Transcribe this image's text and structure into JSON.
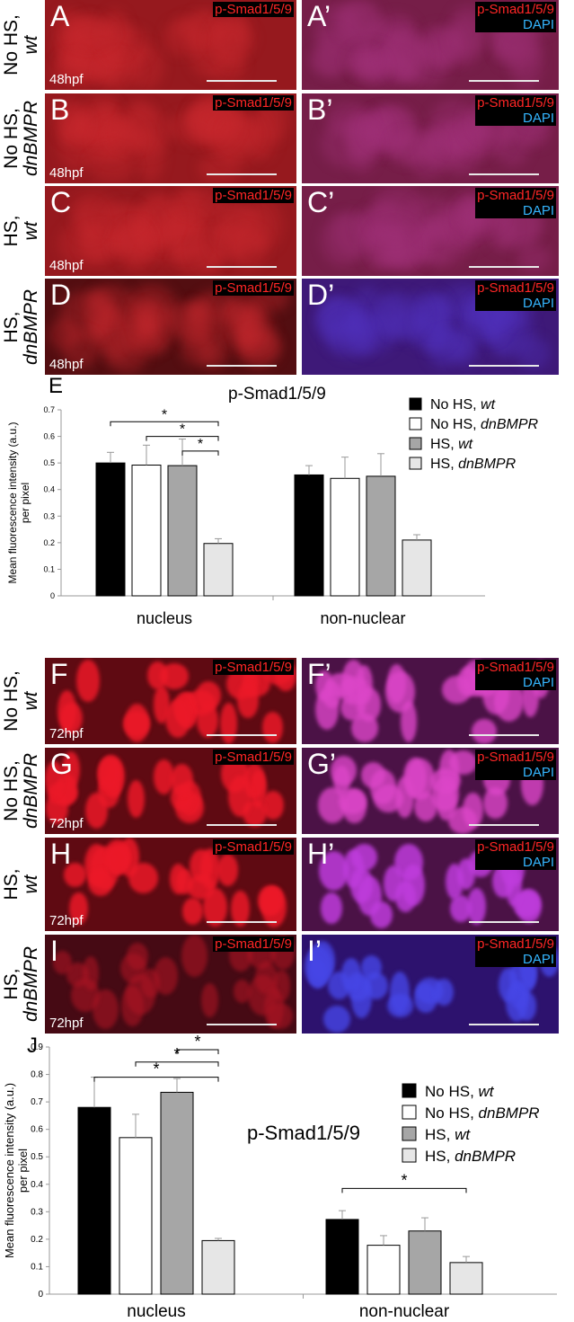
{
  "rows_48": [
    {
      "label1": "No HS,",
      "label2": "wt",
      "letter": "A",
      "letter2": "A’",
      "age": "48hpf"
    },
    {
      "label1": "No HS,",
      "label2": "dnBMPR",
      "letter": "B",
      "letter2": "B’",
      "age": "48hpf"
    },
    {
      "label1": "HS,",
      "label2": "wt",
      "letter": "C",
      "letter2": "C’",
      "age": "48hpf"
    },
    {
      "label1": "HS,",
      "label2": "dnBMPR",
      "letter": "D",
      "letter2": "D’",
      "age": "48hpf"
    }
  ],
  "rows_72": [
    {
      "label1": "No HS,",
      "label2": "wt",
      "letter": "F",
      "letter2": "F’",
      "age": "72hpf"
    },
    {
      "label1": "No HS,",
      "label2": "dnBMPR",
      "letter": "G",
      "letter2": "G’",
      "age": "72hpf"
    },
    {
      "label1": "HS,",
      "label2": "wt",
      "letter": "H",
      "letter2": "H’",
      "age": "72hpf"
    },
    {
      "label1": "HS,",
      "label2": "dnBMPR",
      "letter": "I",
      "letter2": "I’",
      "age": "72hpf"
    }
  ],
  "stain_label": "p-Smad1/5/9",
  "dapi_label": "DAPI",
  "colors": {
    "black_bar": "#000000",
    "white_bar": "#ffffff",
    "grey_bar": "#a6a6a6",
    "light_bar": "#e6e6e6",
    "red_tag": "#ff2626",
    "blue_tag": "#35b6ff"
  },
  "chart_data": [
    {
      "type": "bar",
      "panel_letter": "E",
      "title": "p-Smad1/5/9",
      "ylabel_line1": "Mean fluorescence intensity (a.u.)",
      "ylabel_line2": "per pixel",
      "categories": [
        "nucleus",
        "non-nuclear"
      ],
      "ylim": [
        0,
        0.7
      ],
      "yticks": [
        "0",
        "0.1",
        "0.2",
        "0.3",
        "0.4",
        "0.5",
        "0.6",
        "0.7"
      ],
      "series": [
        {
          "name": "No HS, ",
          "name_italic": "wt",
          "values": [
            0.5,
            0.455
          ],
          "errors": [
            0.04,
            0.035
          ]
        },
        {
          "name": "No HS, ",
          "name_italic": "dnBMPR",
          "values": [
            0.492,
            0.442
          ],
          "errors": [
            0.075,
            0.08
          ]
        },
        {
          "name": "HS, ",
          "name_italic": "wt",
          "values": [
            0.49,
            0.45
          ],
          "errors": [
            0.1,
            0.085
          ]
        },
        {
          "name": "HS, ",
          "name_italic": "dnBMPR",
          "values": [
            0.197,
            0.21
          ],
          "errors": [
            0.018,
            0.02
          ]
        }
      ],
      "significance": [
        {
          "from": 0,
          "to": 3,
          "category": 0,
          "y": 0.655,
          "label": "*"
        },
        {
          "from": 1,
          "to": 3,
          "category": 0,
          "y": 0.6,
          "label": "*"
        },
        {
          "from": 2,
          "to": 3,
          "category": 0,
          "y": 0.545,
          "label": "*"
        }
      ]
    },
    {
      "type": "bar",
      "panel_letter": "J",
      "title": "p-Smad1/5/9",
      "ylabel_line1": "Mean fluorescence intensity (a.u.)",
      "ylabel_line2": "per pixel",
      "categories": [
        "nucleus",
        "non-nuclear"
      ],
      "ylim": [
        0,
        0.9
      ],
      "yticks": [
        "0",
        "0.1",
        "0.2",
        "0.3",
        "0.4",
        "0.5",
        "0.6",
        "0.7",
        "0.8",
        "0.9"
      ],
      "series": [
        {
          "name": "No HS, ",
          "name_italic": "wt",
          "values": [
            0.68,
            0.272
          ],
          "errors": [
            0.11,
            0.032
          ]
        },
        {
          "name": "No HS, ",
          "name_italic": "dnBMPR",
          "values": [
            0.57,
            0.178
          ],
          "errors": [
            0.085,
            0.035
          ]
        },
        {
          "name": "HS, ",
          "name_italic": "wt",
          "values": [
            0.735,
            0.23
          ],
          "errors": [
            0.05,
            0.048
          ]
        },
        {
          "name": "HS, ",
          "name_italic": "dnBMPR",
          "values": [
            0.195,
            0.115
          ],
          "errors": [
            0.008,
            0.022
          ]
        }
      ],
      "significance": [
        {
          "from": 0,
          "to": 3,
          "category": 0,
          "y": 0.79,
          "label": "*"
        },
        {
          "from": 1,
          "to": 3,
          "category": 0,
          "y": 0.845,
          "label": "*"
        },
        {
          "from": 2,
          "to": 3,
          "category": 0,
          "y": 0.89,
          "label": "*"
        },
        {
          "from": 0,
          "to": 3,
          "category": 1,
          "y": 0.385,
          "label": "*"
        }
      ]
    }
  ]
}
